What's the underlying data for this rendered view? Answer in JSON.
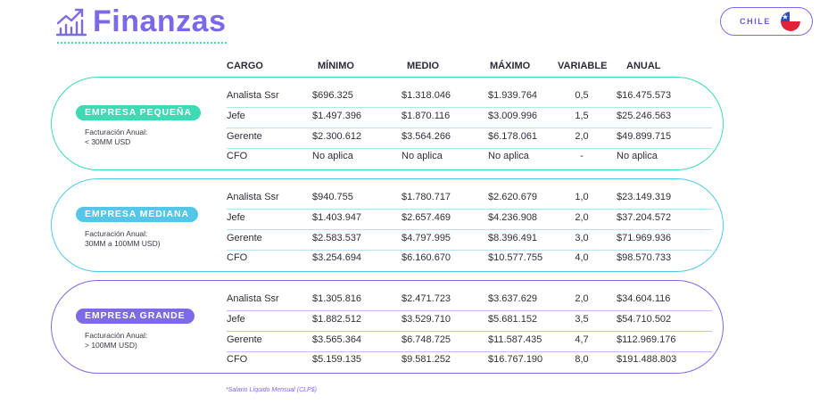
{
  "header": {
    "title": "Finanzas",
    "icon": "chart-growth-icon"
  },
  "country": {
    "label": "CHILE",
    "flag_icon": "chile-flag-icon"
  },
  "columns": {
    "cargo": "CARGO",
    "minimo": "MÍNIMO",
    "medio": "MEDIO",
    "maximo": "MÁXIMO",
    "variable": "VARIABLE",
    "anual": "ANUAL"
  },
  "colors": {
    "brand": "#7b6ae8",
    "small": "#3fd9b3",
    "medium": "#53c6ea",
    "large": "#7d6ae6"
  },
  "groups": [
    {
      "badge": "EMPRESA PEQUEÑA",
      "billing_label": "Facturación Anual:",
      "billing_value": "< 30MM USD",
      "rows": [
        {
          "cargo": "Analista Ssr",
          "min": "$696.325",
          "medio": "$1.318.046",
          "max": "$1.939.764",
          "variable": "0,5",
          "anual": "$16.475.573"
        },
        {
          "cargo": "Jefe",
          "min": "$1.497.396",
          "medio": "$1.870.116",
          "max": "$3.009.996",
          "variable": "1,5",
          "anual": "$25.246.563"
        },
        {
          "cargo": "Gerente",
          "min": "$2.300.612",
          "medio": "$3.564.266",
          "max": "$6.178.061",
          "variable": "2,0",
          "anual": "$49.899.715"
        },
        {
          "cargo": "CFO",
          "min": "No aplica",
          "medio": "No aplica",
          "max": "No aplica",
          "variable": "-",
          "anual": "No aplica"
        }
      ]
    },
    {
      "badge": "EMPRESA MEDIANA",
      "billing_label": "Facturación Anual:",
      "billing_value": "30MM a 100MM USD)",
      "rows": [
        {
          "cargo": "Analista Ssr",
          "min": "$940.755",
          "medio": "$1.780.717",
          "max": "$2.620.679",
          "variable": "1,0",
          "anual": "$23.149.319"
        },
        {
          "cargo": "Jefe",
          "min": "$1.403.947",
          "medio": "$2.657.469",
          "max": "$4.236.908",
          "variable": "2,0",
          "anual": "$37.204.572"
        },
        {
          "cargo": "Gerente",
          "min": "$2.583.537",
          "medio": "$4.797.995",
          "max": "$8.396.491",
          "variable": "3,0",
          "anual": "$71.969.936"
        },
        {
          "cargo": "CFO",
          "min": "$3.254.694",
          "medio": "$6.160.670",
          "max": "$10.577.755",
          "variable": "4,0",
          "anual": "$98.570.733"
        }
      ]
    },
    {
      "badge": "EMPRESA GRANDE",
      "billing_label": "Facturación Anual:",
      "billing_value": "> 100MM USD)",
      "rows": [
        {
          "cargo": "Analista Ssr",
          "min": "$1.305.816",
          "medio": "$2.471.723",
          "max": "$3.637.629",
          "variable": "2,0",
          "anual": "$34.604.116"
        },
        {
          "cargo": "Jefe",
          "min": "$1.882.512",
          "medio": "$3.529.710",
          "max": "$5.681.152",
          "variable": "3,5",
          "anual": "$54.710.502"
        },
        {
          "cargo": "Gerente",
          "min": "$3.565.364",
          "medio": "$6.748.725",
          "max": "$11.587.435",
          "variable": "4,7",
          "anual": "$112.969.176"
        },
        {
          "cargo": "CFO",
          "min": "$5.159.135",
          "medio": "$9.581.252",
          "max": "$16.767.190",
          "variable": "8,0",
          "anual": "$191.488.803"
        }
      ]
    }
  ],
  "footnote": "*Salario Líquido Mensual (CLP$)"
}
